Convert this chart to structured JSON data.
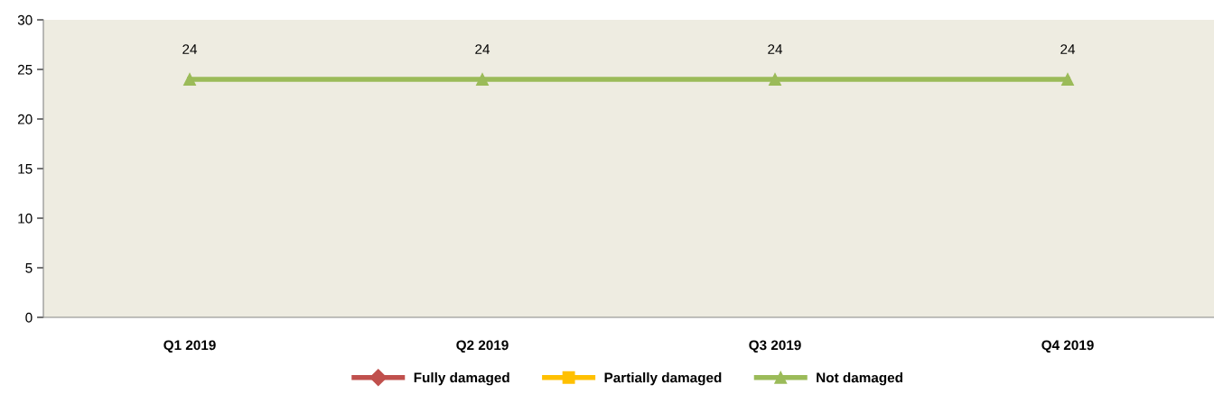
{
  "chart_data": {
    "type": "line",
    "categories": [
      "Q1 2019",
      "Q2 2019",
      "Q3 2019",
      "Q4 2019"
    ],
    "series": [
      {
        "name": "Fully damaged",
        "color": "#c0504d",
        "marker": "diamond",
        "values": [
          null,
          null,
          null,
          null
        ]
      },
      {
        "name": "Partially damaged",
        "color": "#ffc000",
        "marker": "square",
        "values": [
          null,
          null,
          null,
          null
        ]
      },
      {
        "name": "Not damaged",
        "color": "#9bbb59",
        "marker": "triangle",
        "values": [
          24,
          24,
          24,
          24
        ],
        "data_labels": true
      }
    ],
    "ylim": [
      0,
      30
    ],
    "yticks": [
      0,
      5,
      10,
      15,
      20,
      25,
      30
    ],
    "grid": false,
    "legend": "bottom",
    "line_style": "solid"
  }
}
